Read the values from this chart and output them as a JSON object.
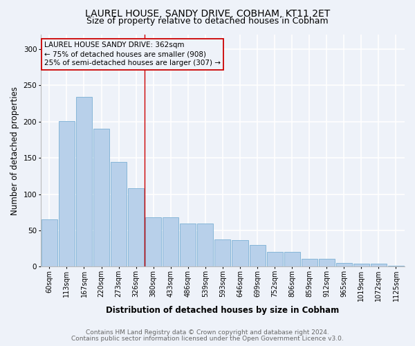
{
  "title": "LAUREL HOUSE, SANDY DRIVE, COBHAM, KT11 2ET",
  "subtitle": "Size of property relative to detached houses in Cobham",
  "xlabel": "Distribution of detached houses by size in Cobham",
  "ylabel": "Number of detached properties",
  "categories": [
    "60sqm",
    "113sqm",
    "167sqm",
    "220sqm",
    "273sqm",
    "326sqm",
    "380sqm",
    "433sqm",
    "486sqm",
    "539sqm",
    "593sqm",
    "646sqm",
    "699sqm",
    "752sqm",
    "806sqm",
    "859sqm",
    "912sqm",
    "965sqm",
    "1019sqm",
    "1072sqm",
    "1125sqm"
  ],
  "values": [
    65,
    201,
    234,
    190,
    144,
    108,
    68,
    68,
    60,
    60,
    38,
    37,
    30,
    20,
    20,
    11,
    11,
    5,
    4,
    4,
    1
  ],
  "bar_color": "#b8d0ea",
  "bar_edge_color": "#7aafd4",
  "marker_label_line1": "LAUREL HOUSE SANDY DRIVE: 362sqm",
  "marker_label_line2": "← 75% of detached houses are smaller (908)",
  "marker_label_line3": "25% of semi-detached houses are larger (307) →",
  "vline_x": 5.5,
  "vline_color": "#cc0000",
  "annotation_box_edge": "#cc0000",
  "ylim": [
    0,
    320
  ],
  "yticks": [
    0,
    50,
    100,
    150,
    200,
    250,
    300
  ],
  "footer_line1": "Contains HM Land Registry data © Crown copyright and database right 2024.",
  "footer_line2": "Contains public sector information licensed under the Open Government Licence v3.0.",
  "background_color": "#eef2f9",
  "grid_color": "#ffffff",
  "title_fontsize": 10,
  "subtitle_fontsize": 9,
  "axis_label_fontsize": 8.5,
  "tick_fontsize": 7,
  "annotation_fontsize": 7.5,
  "footer_fontsize": 6.5
}
